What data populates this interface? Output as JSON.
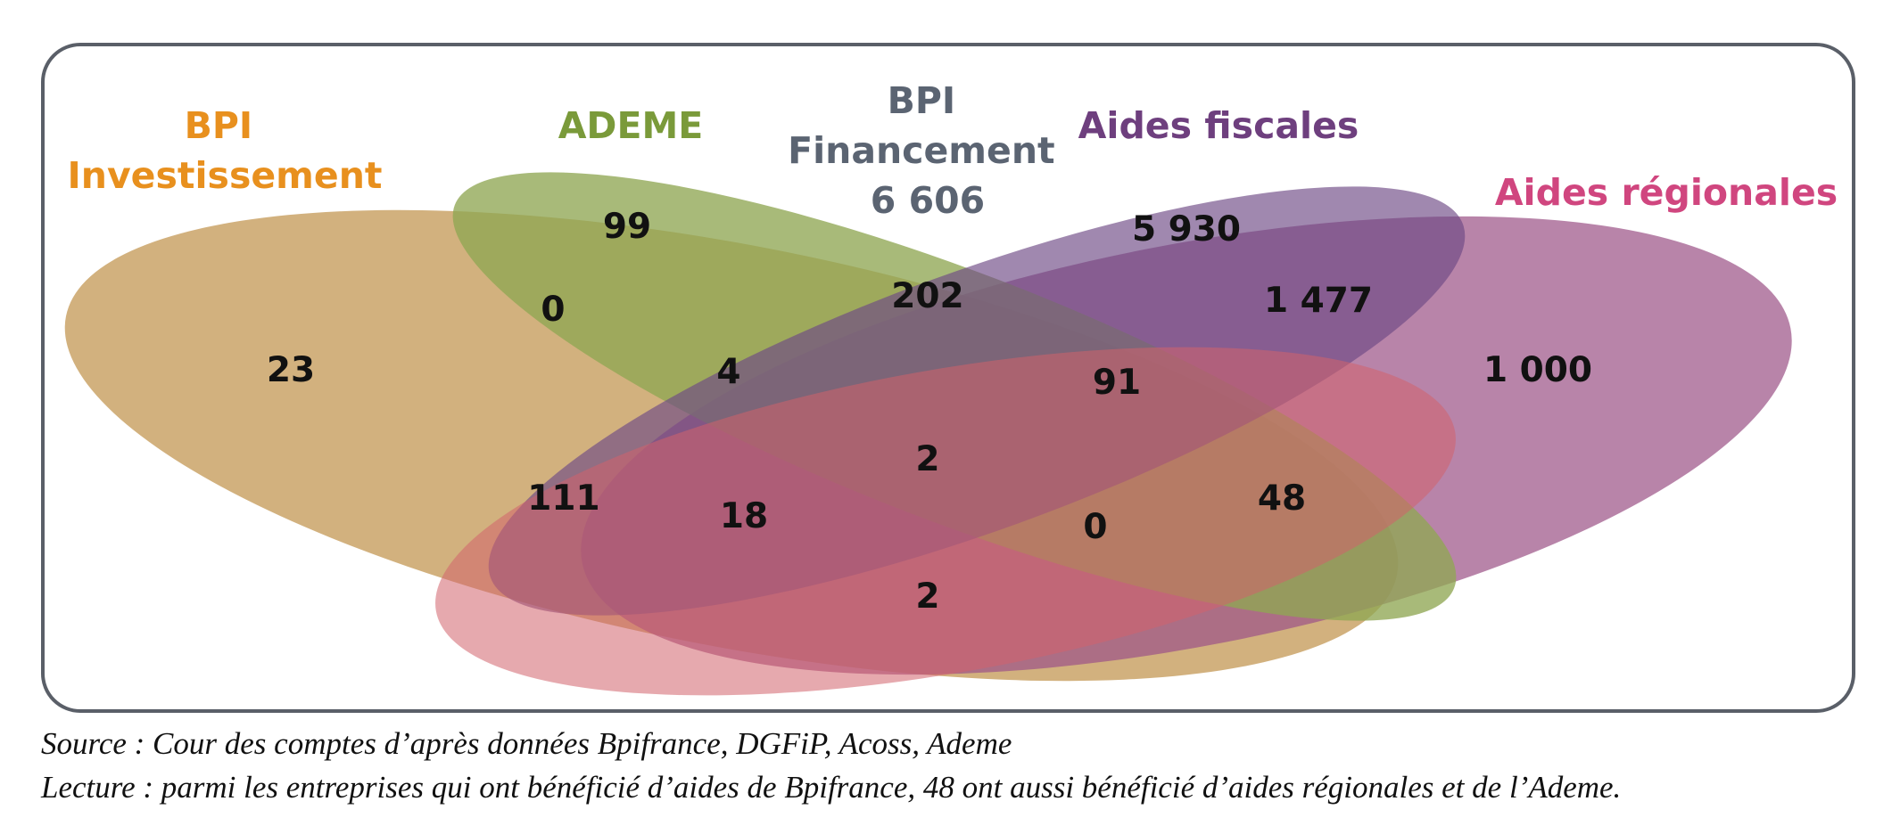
{
  "diagram": {
    "sets": [
      {
        "id": "bpi_inv",
        "label_lines": [
          "BPI",
          "Investissement"
        ],
        "color": "#e8901e",
        "fill": "#b08d4f"
      },
      {
        "id": "ademe",
        "label_lines": [
          "ADEME"
        ],
        "color": "#7a9a3a",
        "fill": "#8aa34a"
      },
      {
        "id": "bpi_fin",
        "label_lines": [
          "BPI",
          "Financement",
          "6 606"
        ],
        "color": "#5b6472",
        "fill": "#c0705a"
      },
      {
        "id": "fiscales",
        "label_lines": [
          "Aides fiscales"
        ],
        "color": "#6e3f7e",
        "fill": "#6a3f78"
      },
      {
        "id": "regionales",
        "label_lines": [
          "Aides régionales"
        ],
        "color": "#d0467f",
        "fill": "#d0457e"
      }
    ],
    "border_color": "#5a5f68",
    "regions": [
      {
        "id": "region-bpi-inv-only",
        "value": "23"
      },
      {
        "id": "region-ademe-only",
        "value": "99"
      },
      {
        "id": "region-ademe-bpi-inv",
        "value": "0"
      },
      {
        "id": "region-ademe-bpi-inv-fin",
        "value": "4"
      },
      {
        "id": "region-ademe-fiscal",
        "value": "202"
      },
      {
        "id": "region-fiscal-only",
        "value": "5 930"
      },
      {
        "id": "region-fiscal-regional",
        "value": "1 477"
      },
      {
        "id": "region-regional-only",
        "value": "1 000"
      },
      {
        "id": "region-ademe-fiscal-regional",
        "value": "91"
      },
      {
        "id": "region-bpi-inv-fin",
        "value": "111"
      },
      {
        "id": "region-bpi-inv-fin-regional",
        "value": "18"
      },
      {
        "id": "region-center-2-upper",
        "value": "2"
      },
      {
        "id": "region-center-0",
        "value": "0"
      },
      {
        "id": "region-fin-regional-ademe",
        "value": "48"
      },
      {
        "id": "region-center-2-lower",
        "value": "2"
      }
    ]
  },
  "captions": {
    "source": "Source : Cour des comptes d’après données Bpifrance, DGFiP, Acoss, Ademe",
    "lecture": "Lecture : parmi les entreprises qui ont bénéficié d’aides de Bpifrance, 48 ont aussi bénéficié d’aides régionales et de l’Ademe."
  }
}
